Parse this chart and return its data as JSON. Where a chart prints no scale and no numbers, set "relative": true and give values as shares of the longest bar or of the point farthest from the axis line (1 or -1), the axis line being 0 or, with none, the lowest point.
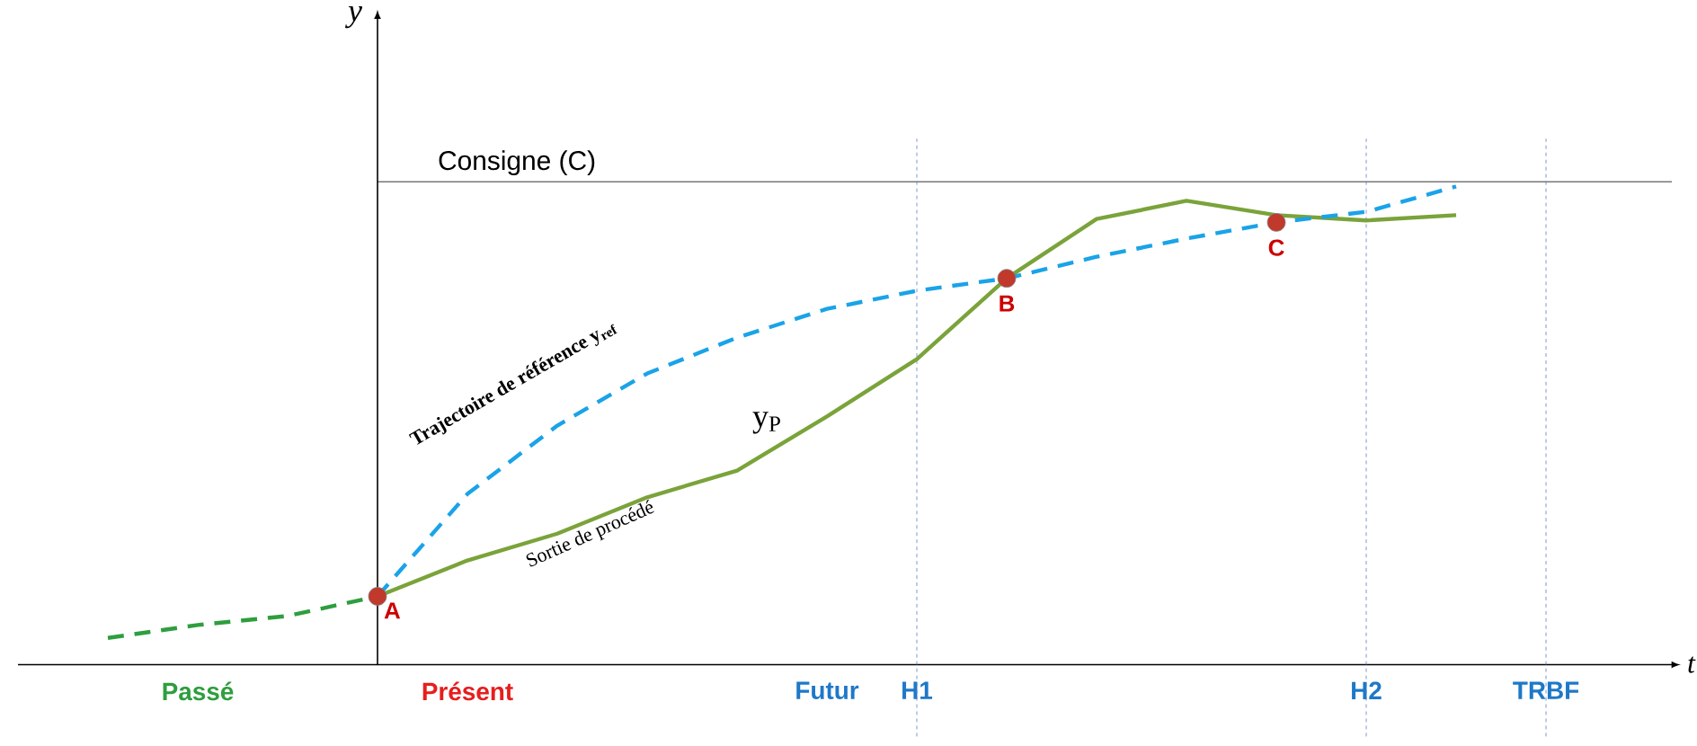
{
  "chart_data": {
    "type": "line",
    "relative": true,
    "xlabel": "t",
    "ylabel": "y",
    "categories": [
      null,
      null,
      "Passé",
      null,
      null,
      "Présent",
      null,
      null,
      null,
      "Futur",
      "H1",
      null,
      null,
      null,
      null,
      "H2",
      null,
      "TRBF",
      null
    ],
    "series": [
      {
        "color": "#2e9e3e",
        "line_style": "dashed",
        "values": [
          null,
          0.056,
          0.083,
          0.102,
          0.143,
          null,
          null,
          null,
          null,
          null,
          null,
          null,
          null,
          null,
          null,
          null,
          null,
          null,
          null
        ]
      },
      {
        "name": "Sortie de procédé",
        "color": "#7aa33a",
        "line_style": "solid",
        "values": [
          null,
          null,
          null,
          null,
          0.143,
          0.218,
          0.274,
          0.35,
          0.406,
          0.519,
          0.639,
          0.808,
          0.932,
          0.97,
          0.94,
          0.929,
          0.94,
          null,
          null
        ]
      },
      {
        "name": "Trajectoire de référence y$_{ref}$",
        "color": "#1aa3e8",
        "line_style": "dashed",
        "values": [
          null,
          null,
          null,
          null,
          0.143,
          0.357,
          0.5,
          0.609,
          0.684,
          0.744,
          0.782,
          0.808,
          0.853,
          0.891,
          0.925,
          0.947,
          1.0,
          null,
          null
        ]
      },
      {
        "type": "scatter",
        "marker": "circle",
        "color": "#c0392b",
        "values": [
          null,
          null,
          null,
          null,
          0.143,
          null,
          null,
          null,
          null,
          null,
          null,
          0.808,
          null,
          null,
          0.925,
          null,
          null,
          null,
          null
        ]
      }
    ],
    "ref_lines": [
      {
        "axis": "y",
        "value": 1.01,
        "label": "Consigne (C)",
        "color": "#000000",
        "line_style": "solid"
      },
      {
        "axis": "x",
        "value": "H1",
        "color": "#5b7fc7",
        "line_style": "dotted"
      },
      {
        "axis": "x",
        "value": "H2",
        "color": "#5b7fc7",
        "line_style": "dotted"
      },
      {
        "axis": "x",
        "value": "TRBF",
        "color": "#5b7fc7",
        "line_style": "dotted"
      }
    ],
    "annotations": [
      "A",
      "B",
      "C",
      "y$_{P}$"
    ]
  }
}
